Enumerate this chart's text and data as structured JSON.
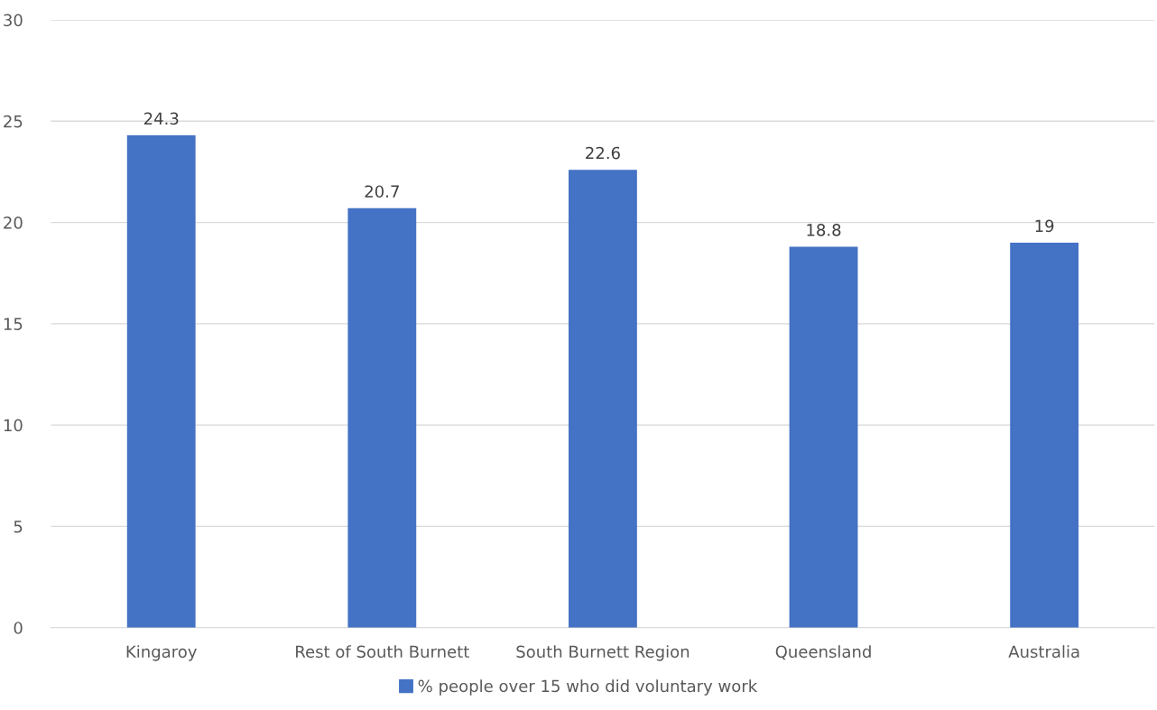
{
  "chart_data": {
    "type": "bar",
    "categories": [
      "Kingaroy",
      "Rest of South Burnett",
      "South Burnett Region",
      "Queensland",
      "Australia"
    ],
    "series": [
      {
        "name": "% people over 15 who did voluntary work",
        "color": "#4472c4",
        "values": [
          24.3,
          20.7,
          22.6,
          18.8,
          19
        ]
      }
    ],
    "ylim": [
      0,
      30
    ],
    "yticks": [
      0,
      5,
      10,
      15,
      20,
      25,
      30
    ],
    "grid": "y",
    "legend": "bottom",
    "data_labels": true
  }
}
